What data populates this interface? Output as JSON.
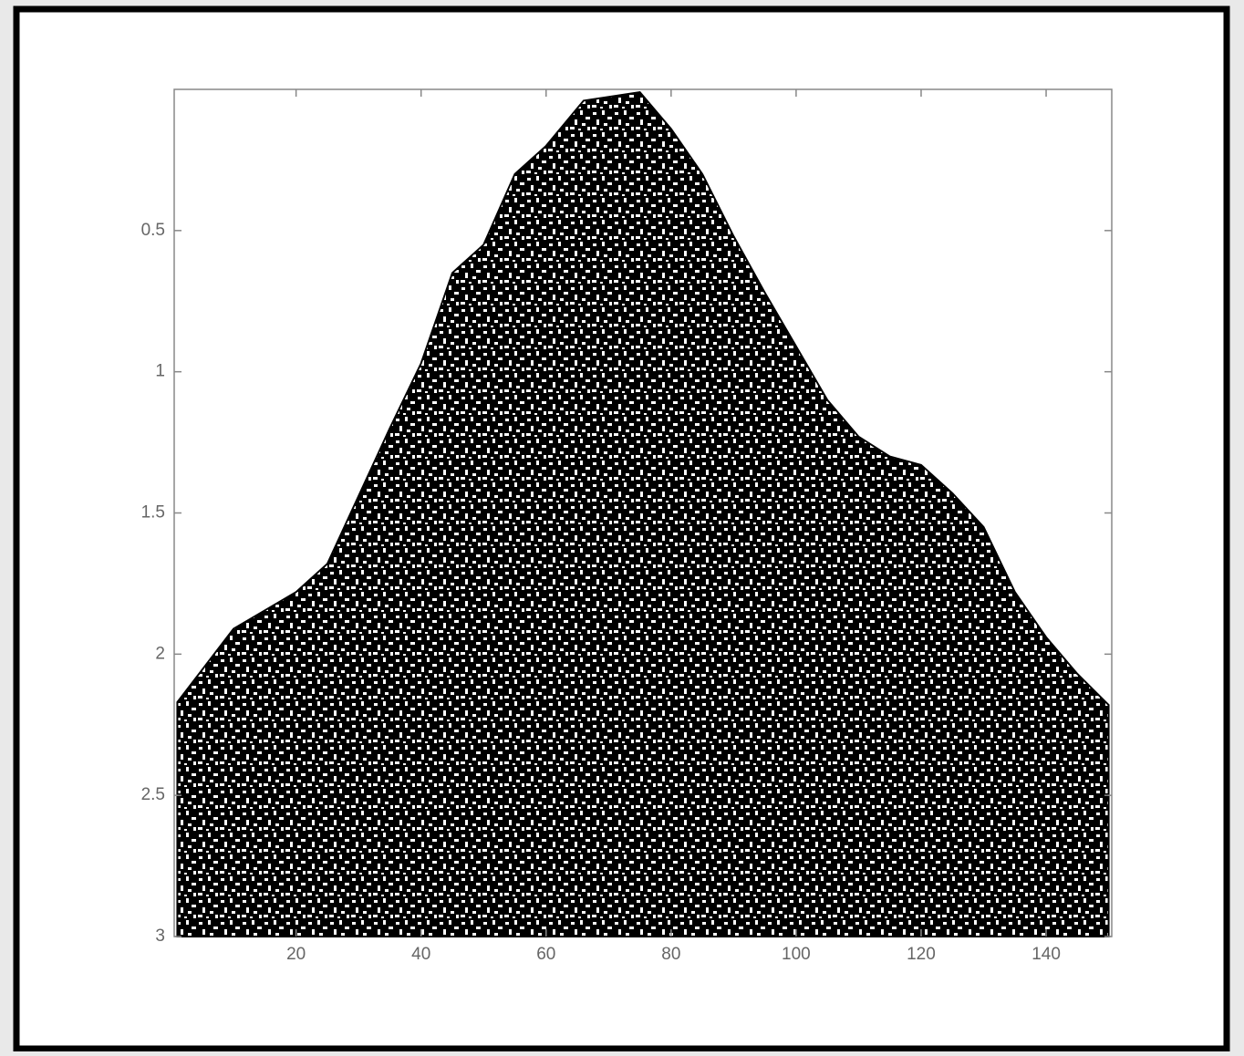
{
  "chart_data": {
    "type": "area",
    "color": "#000000",
    "x": [
      1,
      10,
      20,
      25,
      30,
      35,
      40,
      45,
      50,
      55,
      60,
      66,
      75,
      80,
      85,
      90,
      95,
      100,
      105,
      110,
      115,
      120,
      125,
      130,
      135,
      140,
      145,
      150
    ],
    "values": [
      2.17,
      1.91,
      1.78,
      1.68,
      1.44,
      1.2,
      0.97,
      0.65,
      0.55,
      0.3,
      0.2,
      0.04,
      0.01,
      0.14,
      0.3,
      0.52,
      0.72,
      0.91,
      1.1,
      1.23,
      1.3,
      1.33,
      1.43,
      1.55,
      1.78,
      1.94,
      2.07,
      2.18
    ],
    "xlim": [
      0.5,
      150.5
    ],
    "ylim": [
      3,
      0
    ],
    "y_inverted": true,
    "xticks": [
      20,
      40,
      60,
      80,
      100,
      120,
      140
    ],
    "yticks": [
      0.5,
      1,
      1.5,
      2,
      2.5,
      3
    ]
  }
}
